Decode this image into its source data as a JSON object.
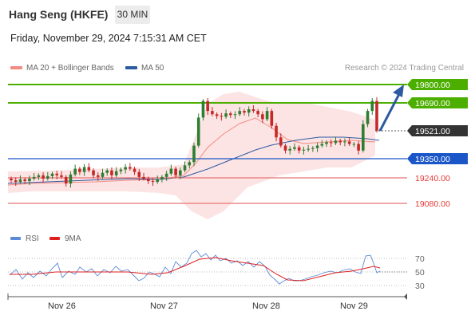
{
  "header": {
    "title": "Hang Seng (HKFE)",
    "timeframe": "30 MIN",
    "datetime": "Friday, November 29, 2024 7:15:31 AM CET"
  },
  "legend": {
    "bollinger_label": "MA 20 + Bollinger Bands",
    "bollinger_color": "#f28b82",
    "ma50_label": "MA 50",
    "ma50_color": "#2d5aa0"
  },
  "credit": "Research © 2024 Trading Central",
  "rsi_legend": {
    "rsi_label": "RSI",
    "rsi_color": "#5b8ad6",
    "ma9_label": "9MA",
    "ma9_color": "#e02020"
  },
  "chart_data": {
    "type": "candlestick",
    "x_ticks": [
      "Nov 26",
      "Nov 27",
      "Nov 28",
      "Nov 29"
    ],
    "levels": [
      {
        "label": "19800.00",
        "value": 19800,
        "style": "resistance",
        "color": "#4caf00"
      },
      {
        "label": "19690.00",
        "value": 19690,
        "style": "resistance",
        "color": "#4caf00"
      },
      {
        "label": "19521.00",
        "value": 19521,
        "style": "last",
        "color": "#333333"
      },
      {
        "label": "19350.00",
        "value": 19350,
        "style": "pivot",
        "color": "#1a56c8"
      },
      {
        "label": "19240.00",
        "value": 19240,
        "style": "support",
        "color": "#e53935"
      },
      {
        "label": "19080.00",
        "value": 19080,
        "style": "support",
        "color": "#e53935"
      }
    ],
    "closes": [
      19220,
      19210,
      19225,
      19215,
      19230,
      19240,
      19250,
      19230,
      19245,
      19260,
      19250,
      19240,
      19200,
      19255,
      19290,
      19270,
      19300,
      19280,
      19250,
      19240,
      19265,
      19280,
      19250,
      19275,
      19285,
      19300,
      19290,
      19270,
      19240,
      19230,
      19215,
      19210,
      19225,
      19240,
      19260,
      19290,
      19250,
      19280,
      19310,
      19330,
      19430,
      19600,
      19700,
      19640,
      19620,
      19610,
      19605,
      19625,
      19615,
      19620,
      19640,
      19630,
      19650,
      19640,
      19620,
      19590,
      19640,
      19550,
      19480,
      19430,
      19400,
      19410,
      19420,
      19400,
      19405,
      19410,
      19415,
      19430,
      19440,
      19450,
      19445,
      19460,
      19450,
      19455,
      19440,
      19440,
      19400,
      19560,
      19640,
      19700,
      19521
    ],
    "target": 19800,
    "rsi": {
      "ticks": [
        "70",
        "50",
        "30"
      ]
    }
  }
}
